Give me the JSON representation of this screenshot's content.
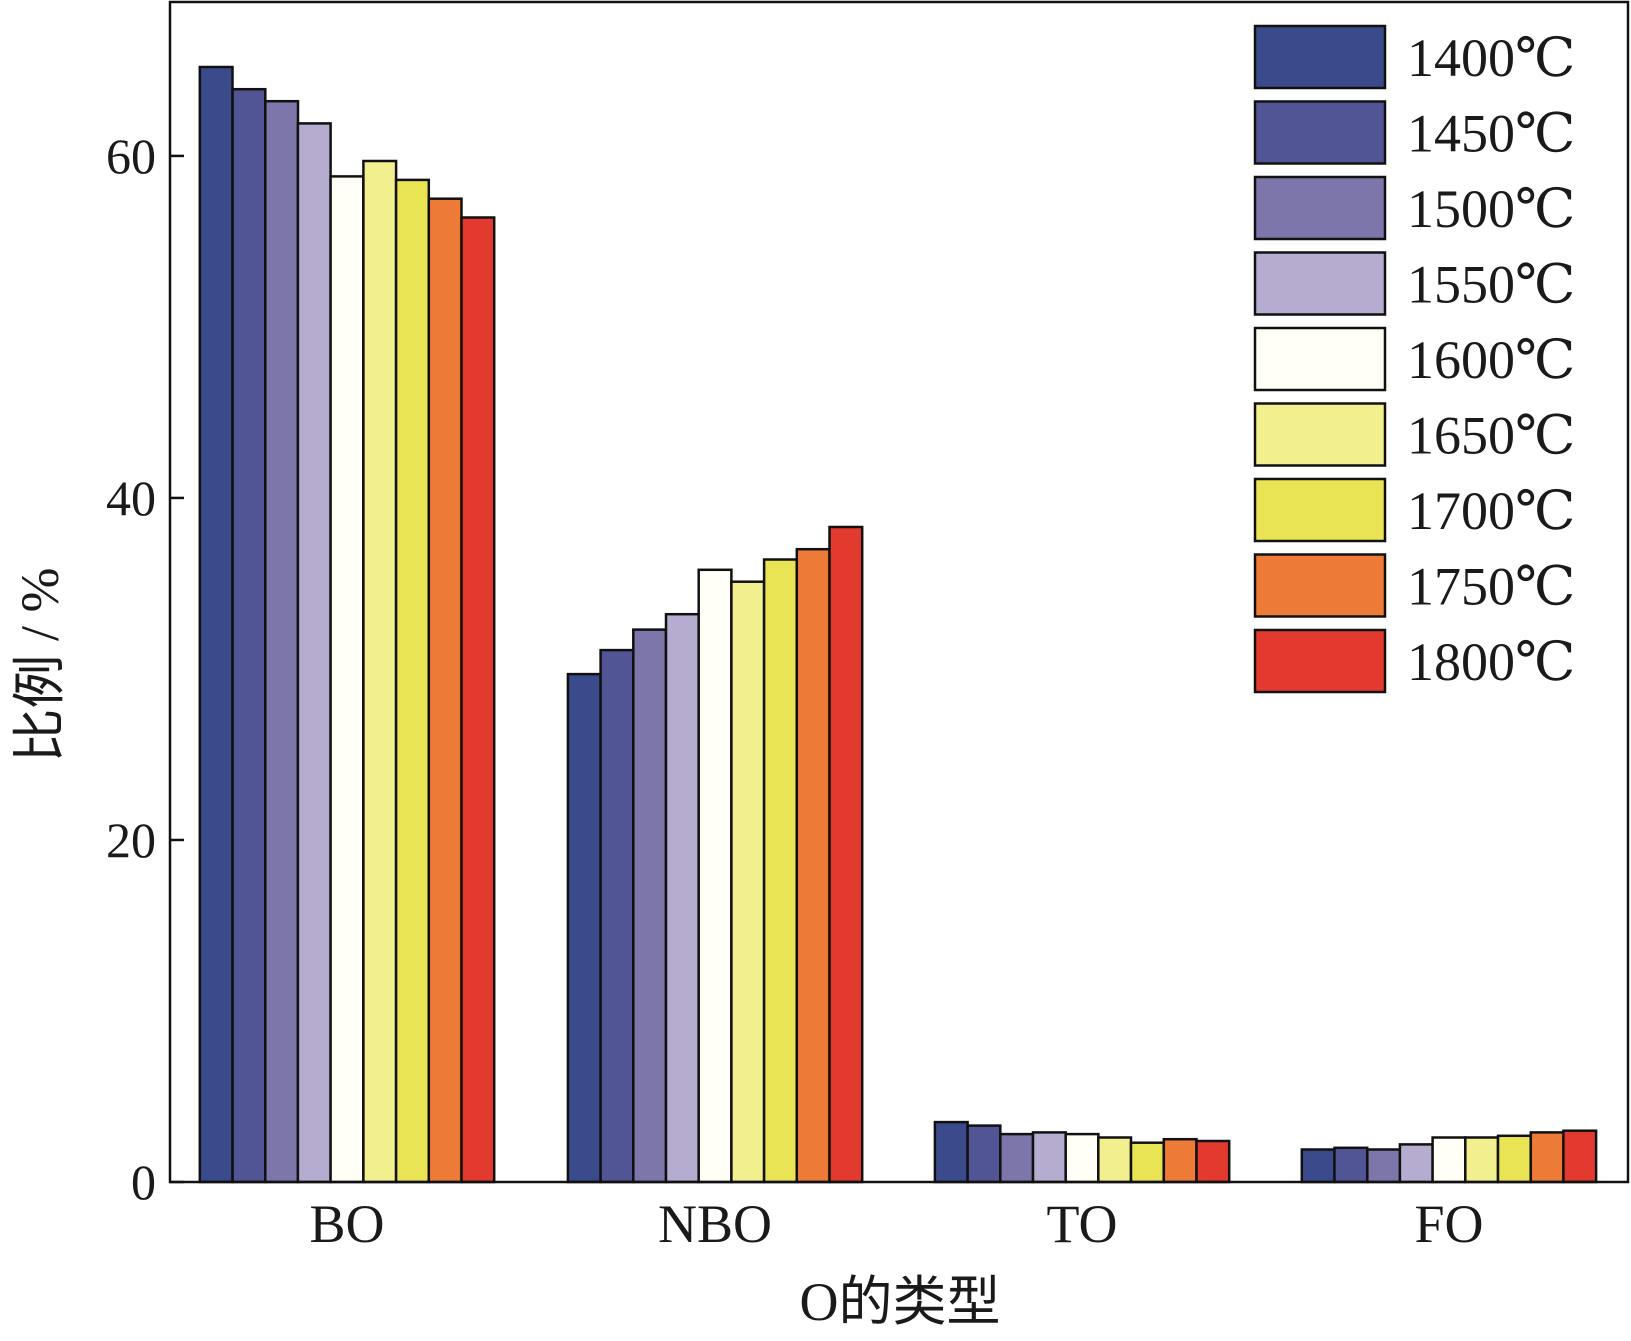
{
  "chart_data": {
    "type": "bar",
    "title": "",
    "xlabel": "O的类型",
    "ylabel": "比例 / %",
    "ylim": [
      0,
      69
    ],
    "yticks": [
      0,
      20,
      40,
      60
    ],
    "grid": false,
    "legend_position": "top-right",
    "categories": [
      "BO",
      "NBO",
      "TO",
      "FO"
    ],
    "series": [
      {
        "name": "1400℃",
        "color": "#3b4a8a",
        "values": [
          65.2,
          29.7,
          3.5,
          1.9
        ]
      },
      {
        "name": "1450℃",
        "color": "#525595",
        "values": [
          63.9,
          31.1,
          3.3,
          2.0
        ]
      },
      {
        "name": "1500℃",
        "color": "#7c76ab",
        "values": [
          63.2,
          32.3,
          2.8,
          1.9
        ]
      },
      {
        "name": "1550℃",
        "color": "#b6accf",
        "values": [
          61.9,
          33.2,
          2.9,
          2.2
        ]
      },
      {
        "name": "1600℃",
        "color": "#fffff8",
        "values": [
          58.8,
          35.8,
          2.8,
          2.6
        ]
      },
      {
        "name": "1650℃",
        "color": "#f2ef8e",
        "values": [
          59.7,
          35.1,
          2.6,
          2.6
        ]
      },
      {
        "name": "1700℃",
        "color": "#e8e454",
        "values": [
          58.6,
          36.4,
          2.3,
          2.7
        ]
      },
      {
        "name": "1750℃",
        "color": "#ee7a38",
        "values": [
          57.5,
          37.0,
          2.5,
          2.9
        ]
      },
      {
        "name": "1800℃",
        "color": "#e23a2e",
        "values": [
          56.4,
          38.3,
          2.4,
          3.0
        ]
      }
    ]
  }
}
